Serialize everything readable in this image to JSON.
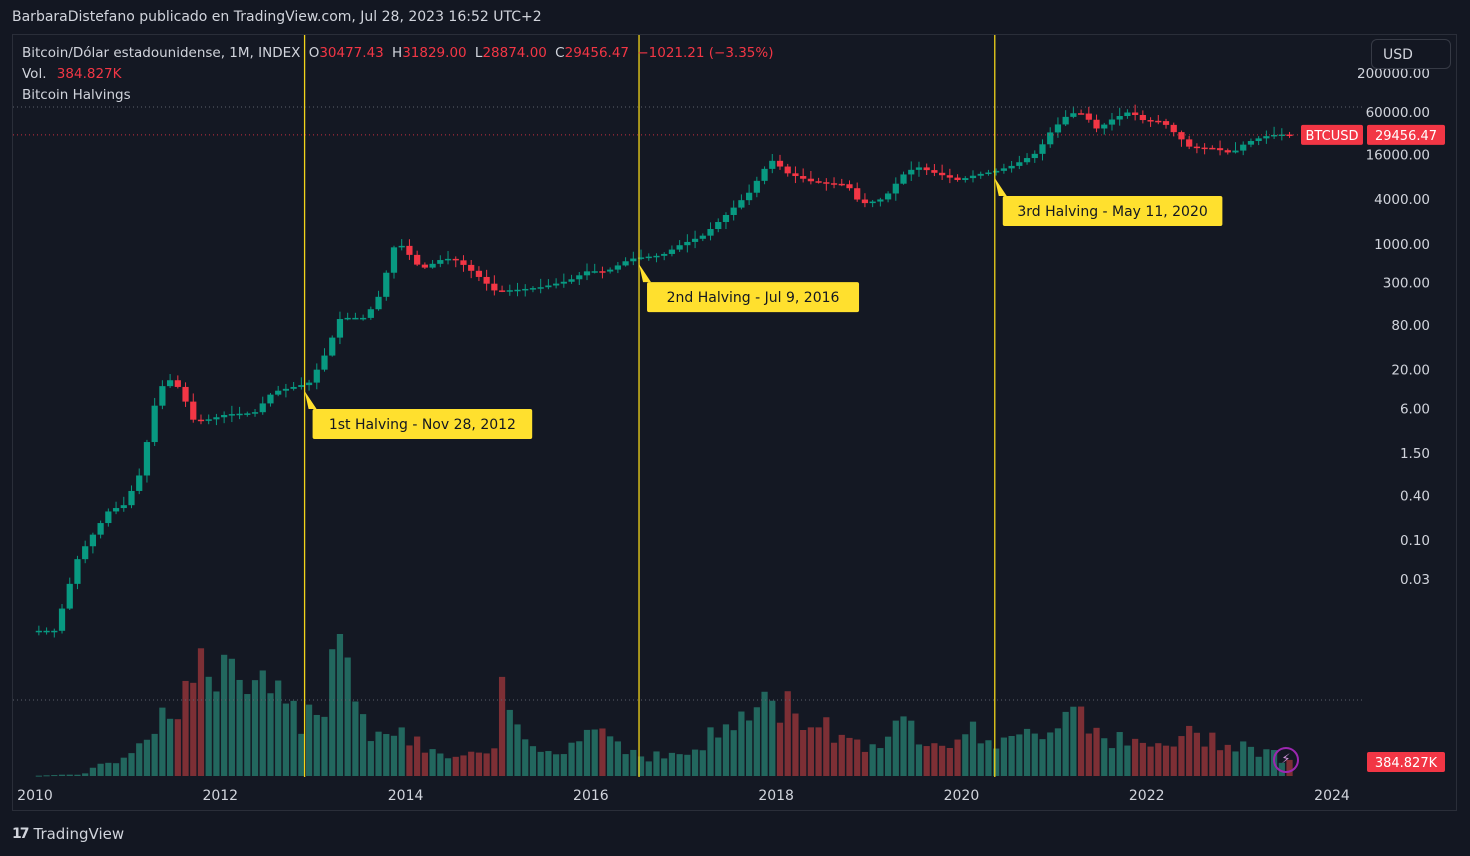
{
  "header": {
    "published_by": "BarbaraDistefano publicado en TradingView.com, Jul 28, 2023 16:52 UTC+2"
  },
  "legend": {
    "symbol": "Bitcoin/Dólar estadounidense, 1M, INDEX",
    "open_label": "O",
    "open": "30477.43",
    "high_label": "H",
    "high": "31829.00",
    "low_label": "L",
    "low": "28874.00",
    "close_label": "C",
    "close": "29456.47",
    "change": "−1021.21 (−3.35%)",
    "vol_label": "Vol.",
    "vol_value": "384.827K",
    "indicator": "Bitcoin Halvings"
  },
  "currency_button": "USD",
  "brand": {
    "name": "TradingView"
  },
  "colors": {
    "background": "#131722",
    "up": "#089981",
    "down": "#f23645",
    "up_volume": "#22675e",
    "down_volume": "#7d2f35",
    "halving_line": "#f2d41a",
    "annotation_bg": "#ffe02e"
  },
  "chart_data": {
    "type": "candlestick",
    "title": "Bitcoin/Dólar estadounidense, 1M, INDEX",
    "y_scale": "log",
    "y_ticks": [
      {
        "v": 0.03,
        "label": "0.03"
      },
      {
        "v": 0.1,
        "label": "0.10"
      },
      {
        "v": 0.4,
        "label": "0.40"
      },
      {
        "v": 1.5,
        "label": "1.50"
      },
      {
        "v": 6,
        "label": "6.00"
      },
      {
        "v": 20,
        "label": "20.00"
      },
      {
        "v": 80,
        "label": "80.00"
      },
      {
        "v": 300,
        "label": "300.00"
      },
      {
        "v": 1000,
        "label": "1000.00"
      },
      {
        "v": 4000,
        "label": "4000.00"
      },
      {
        "v": 16000,
        "label": "16000.00"
      },
      {
        "v": 60000,
        "label": "60000.00"
      },
      {
        "v": 200000,
        "label": "200000.00"
      }
    ],
    "x_ticks": [
      {
        "v": 2010.0,
        "label": "2010"
      },
      {
        "v": 2012.0,
        "label": "2012"
      },
      {
        "v": 2014.0,
        "label": "2014"
      },
      {
        "v": 2016.0,
        "label": "2016"
      },
      {
        "v": 2018.0,
        "label": "2018"
      },
      {
        "v": 2020.0,
        "label": "2020"
      },
      {
        "v": 2022.0,
        "label": "2022"
      },
      {
        "v": 2024.0,
        "label": "2024"
      }
    ],
    "last_price": {
      "symbol": "BTCUSD",
      "value": 29456.47,
      "label": "29456.47"
    },
    "last_volume": {
      "label": "384.827K"
    },
    "halvings": [
      {
        "x": 2012.91,
        "label": "1st Halving - Nov 28, 2012"
      },
      {
        "x": 2016.52,
        "label": "2nd Halving - Jul 9, 2016"
      },
      {
        "x": 2020.36,
        "label": "3rd Halving - May 11, 2020"
      }
    ],
    "price_anchors": [
      [
        2010.0,
        0.006
      ],
      [
        2010.25,
        0.006
      ],
      [
        2010.5,
        0.06
      ],
      [
        2010.83,
        0.25
      ],
      [
        2011.0,
        0.3
      ],
      [
        2011.17,
        0.8
      ],
      [
        2011.33,
        7
      ],
      [
        2011.45,
        16
      ],
      [
        2011.6,
        11
      ],
      [
        2011.75,
        4
      ],
      [
        2011.92,
        4.3
      ],
      [
        2012.1,
        5
      ],
      [
        2012.4,
        5.2
      ],
      [
        2012.6,
        10
      ],
      [
        2012.92,
        12.5
      ],
      [
        2013.0,
        13.5
      ],
      [
        2013.17,
        33
      ],
      [
        2013.33,
        100
      ],
      [
        2013.45,
        100
      ],
      [
        2013.6,
        100
      ],
      [
        2013.75,
        200
      ],
      [
        2013.92,
        1000
      ],
      [
        2014.0,
        930
      ],
      [
        2014.2,
        450
      ],
      [
        2014.45,
        640
      ],
      [
        2014.6,
        590
      ],
      [
        2014.8,
        380
      ],
      [
        2015.0,
        230
      ],
      [
        2015.25,
        240
      ],
      [
        2015.5,
        260
      ],
      [
        2015.8,
        320
      ],
      [
        2016.0,
        430
      ],
      [
        2016.2,
        420
      ],
      [
        2016.45,
        620
      ],
      [
        2016.55,
        650
      ],
      [
        2016.8,
        700
      ],
      [
        2017.0,
        970
      ],
      [
        2017.25,
        1300
      ],
      [
        2017.5,
        2500
      ],
      [
        2017.75,
        5000
      ],
      [
        2017.9,
        10000
      ],
      [
        2018.0,
        13500
      ],
      [
        2018.15,
        9000
      ],
      [
        2018.4,
        7000
      ],
      [
        2018.6,
        6500
      ],
      [
        2018.8,
        6300
      ],
      [
        2018.9,
        4000
      ],
      [
        2019.0,
        3500
      ],
      [
        2019.2,
        4100
      ],
      [
        2019.4,
        8500
      ],
      [
        2019.55,
        11000
      ],
      [
        2019.75,
        9000
      ],
      [
        2020.0,
        7200
      ],
      [
        2020.2,
        8600
      ],
      [
        2020.38,
        9400
      ],
      [
        2020.6,
        11500
      ],
      [
        2020.85,
        17000
      ],
      [
        2021.0,
        33000
      ],
      [
        2021.2,
        58000
      ],
      [
        2021.35,
        57000
      ],
      [
        2021.5,
        35000
      ],
      [
        2021.65,
        47000
      ],
      [
        2021.85,
        61000
      ],
      [
        2022.0,
        46000
      ],
      [
        2022.2,
        45000
      ],
      [
        2022.35,
        30000
      ],
      [
        2022.5,
        20000
      ],
      [
        2022.75,
        19500
      ],
      [
        2022.95,
        16500
      ],
      [
        2023.1,
        23000
      ],
      [
        2023.3,
        28000
      ],
      [
        2023.45,
        30000
      ],
      [
        2023.57,
        29456
      ]
    ],
    "volume_anchors": [
      [
        2010.0,
        0.01
      ],
      [
        2010.5,
        0.05
      ],
      [
        2010.9,
        0.5
      ],
      [
        2011.3,
        1.5
      ],
      [
        2011.9,
        3.5
      ],
      [
        2012.0,
        3
      ],
      [
        2012.5,
        2.4
      ],
      [
        2012.9,
        1.7
      ],
      [
        2013.15,
        2.5
      ],
      [
        2013.3,
        5.5
      ],
      [
        2013.5,
        1.6
      ],
      [
        2014.0,
        1.1
      ],
      [
        2014.5,
        0.5
      ],
      [
        2015.0,
        0.7
      ],
      [
        2015.05,
        2.6
      ],
      [
        2015.3,
        0.9
      ],
      [
        2015.8,
        0.9
      ],
      [
        2016.0,
        1.6
      ],
      [
        2016.3,
        1.0
      ],
      [
        2016.55,
        0.6
      ],
      [
        2017.0,
        0.6
      ],
      [
        2017.5,
        1.5
      ],
      [
        2017.95,
        2.2
      ],
      [
        2018.3,
        1.8
      ],
      [
        2018.8,
        1.1
      ],
      [
        2019.0,
        0.9
      ],
      [
        2019.4,
        1.5
      ],
      [
        2019.7,
        1.1
      ],
      [
        2020.2,
        1.3
      ],
      [
        2020.5,
        0.9
      ],
      [
        2021.0,
        1.6
      ],
      [
        2021.25,
        2.3
      ],
      [
        2021.5,
        1.2
      ],
      [
        2022.0,
        0.8
      ],
      [
        2022.5,
        1.2
      ],
      [
        2023.0,
        1.0
      ],
      [
        2023.4,
        0.6
      ],
      [
        2023.57,
        0.45
      ]
    ],
    "volume_scale_max": 5.5,
    "grid": false,
    "legend_position": "top-left"
  }
}
